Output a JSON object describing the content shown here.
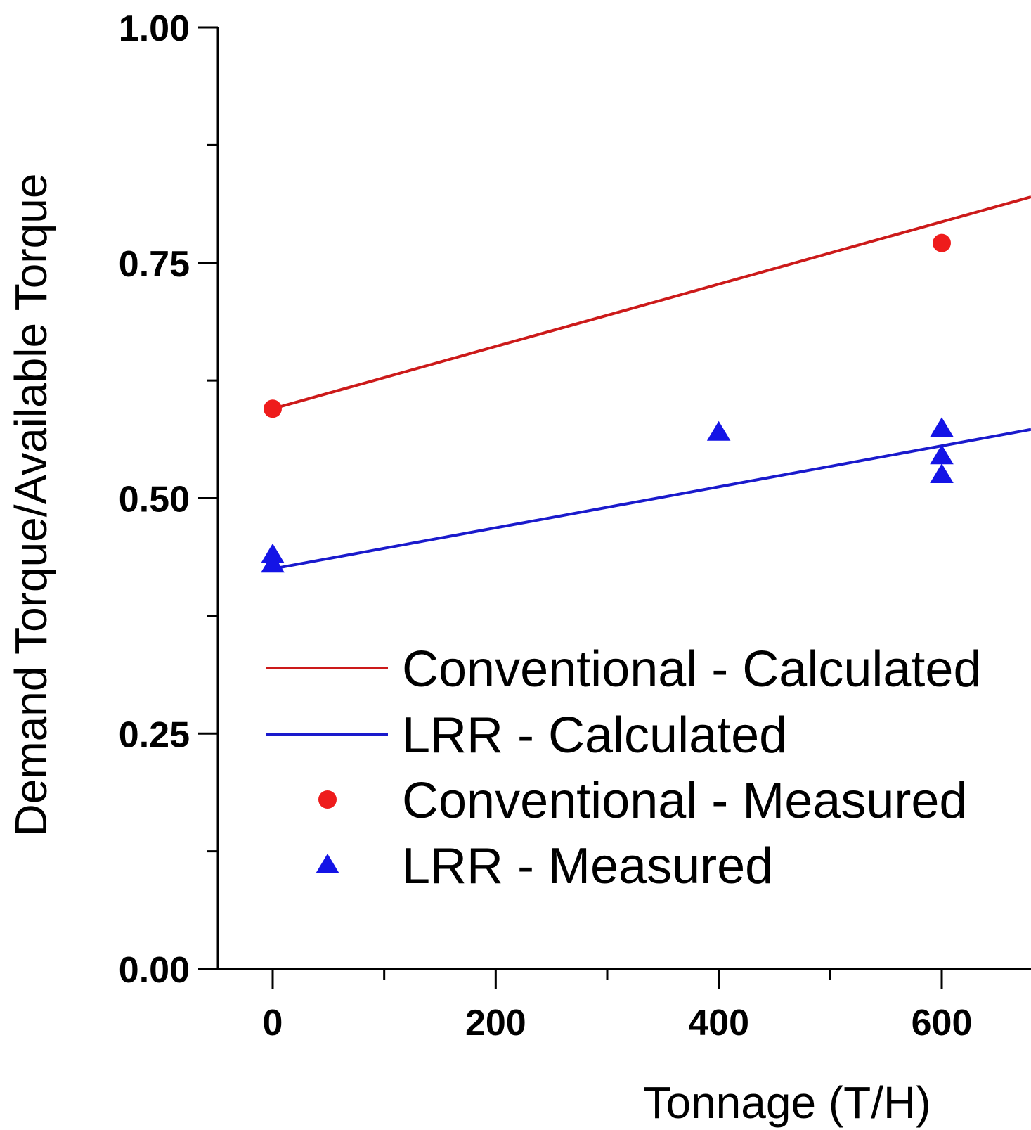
{
  "chart_data": {
    "type": "line",
    "xlabel": "Tonnage (T/H)",
    "ylabel": "Demand Torque/Available Torque",
    "xlim": [
      -25,
      680
    ],
    "ylim": [
      0,
      1.0
    ],
    "x_ticks": [
      0,
      200,
      400,
      600
    ],
    "x_tick_labels": [
      "0",
      "200",
      "400",
      "600"
    ],
    "y_ticks": [
      0,
      0.25,
      0.5,
      0.75,
      1.0
    ],
    "y_tick_labels": [
      "0.00",
      "0.25",
      "0.50",
      "0.75",
      "1.00"
    ],
    "y_minor_ticks": [
      0.125,
      0.375,
      0.625,
      0.875
    ],
    "grid": false,
    "legend_position": "lower-right",
    "series": [
      {
        "name": "Conventional - Calculated",
        "kind": "line",
        "color": "#cc1a1a",
        "x": [
          0,
          680
        ],
        "y": [
          0.595,
          0.82
        ]
      },
      {
        "name": "LRR - Calculated",
        "kind": "line",
        "color": "#1a1acc",
        "x": [
          0,
          680
        ],
        "y": [
          0.425,
          0.573
        ]
      },
      {
        "name": "Conventional - Measured",
        "kind": "scatter",
        "marker": "circle",
        "color": "#ee1c1c",
        "x": [
          0,
          600
        ],
        "y": [
          0.595,
          0.771
        ]
      },
      {
        "name": "LRR - Measured",
        "kind": "scatter",
        "marker": "triangle",
        "color": "#1414e6",
        "x": [
          0,
          0,
          400,
          600,
          600,
          600
        ],
        "y": [
          0.44,
          0.43,
          0.57,
          0.574,
          0.545,
          0.525
        ]
      }
    ]
  }
}
